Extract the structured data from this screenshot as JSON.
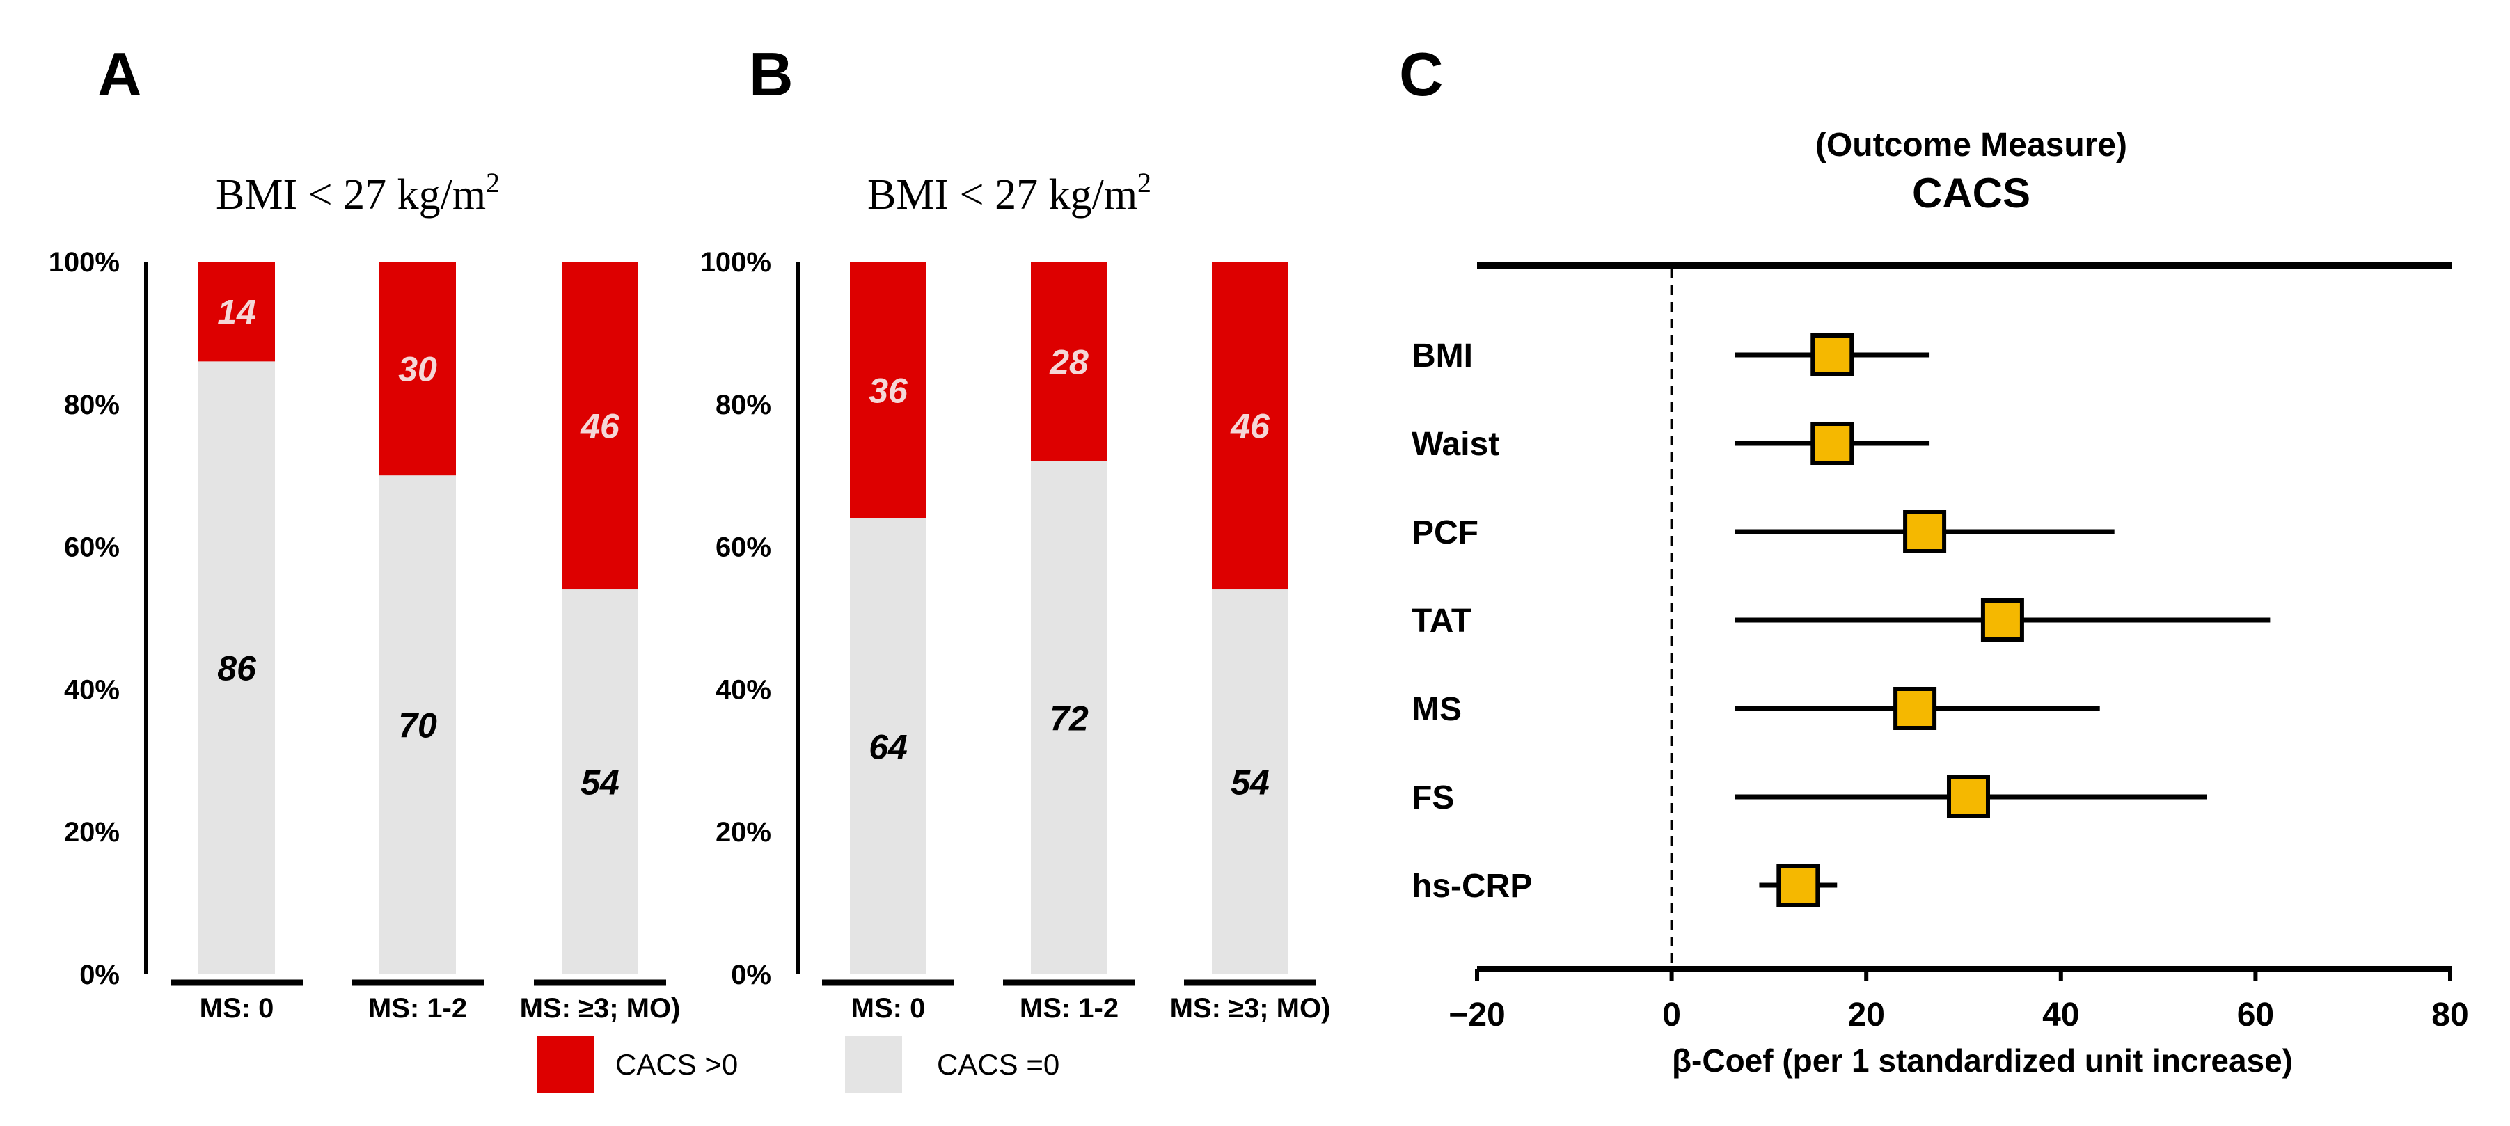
{
  "chart_data": [
    {
      "panel": "A",
      "type": "bar",
      "stacked": true,
      "percent": true,
      "title": "BMI < 27 kg/m",
      "title_superscript": "2",
      "categories": [
        "MS: 0",
        "MS: 1-2",
        "MS: ≥3; MO)"
      ],
      "series": [
        {
          "name": "CACS =0",
          "color": "#e4e4e4",
          "label_color": "#000000",
          "values": [
            86,
            70,
            54
          ]
        },
        {
          "name": "CACS >0",
          "color": "#dd0000",
          "label_color": "#f4d7d7",
          "values": [
            14,
            30,
            46
          ]
        }
      ],
      "ylim": [
        0,
        100
      ],
      "yticks": [
        "0%",
        "20%",
        "40%",
        "60%",
        "80%",
        "100%"
      ]
    },
    {
      "panel": "B",
      "type": "bar",
      "stacked": true,
      "percent": true,
      "title": "BMI < 27 kg/m",
      "title_superscript": "2",
      "categories": [
        "MS: 0",
        "MS: 1-2",
        "MS: ≥3; MO)"
      ],
      "series": [
        {
          "name": "CACS =0",
          "color": "#e4e4e4",
          "label_color": "#000000",
          "values": [
            64,
            72,
            54
          ]
        },
        {
          "name": "CACS >0",
          "color": "#dd0000",
          "label_color": "#f4d7d7",
          "values": [
            36,
            28,
            46
          ]
        }
      ],
      "ylim": [
        0,
        100
      ],
      "yticks": [
        "0%",
        "20%",
        "40%",
        "60%",
        "80%",
        "100%"
      ]
    },
    {
      "panel": "C",
      "type": "scatter",
      "subtype": "forest",
      "title_small": "(Outcome Measure)",
      "title": "CACS",
      "xlabel": "β-Coef (per 1 standardized unit increase)",
      "xlim": [
        -20,
        80
      ],
      "xticks": [
        -20,
        0,
        20,
        40,
        60,
        80
      ],
      "xtick_labels": [
        "−20",
        "0",
        "20",
        "40",
        "60",
        "80"
      ],
      "reference_line": 0,
      "marker_color": "#f5b800",
      "rows": [
        {
          "label": "BMI",
          "estimate": 16.5,
          "lower": 6.5,
          "upper": 26.5
        },
        {
          "label": "Waist",
          "estimate": 16.5,
          "lower": 6.5,
          "upper": 26.5
        },
        {
          "label": "PCF",
          "estimate": 26,
          "lower": 6.5,
          "upper": 45.5
        },
        {
          "label": "TAT",
          "estimate": 34,
          "lower": 6.5,
          "upper": 61.5
        },
        {
          "label": "MS",
          "estimate": 25,
          "lower": 6.5,
          "upper": 44
        },
        {
          "label": "FS",
          "estimate": 30.5,
          "lower": 6.5,
          "upper": 55
        },
        {
          "label": "hs-CRP",
          "estimate": 13,
          "lower": 9,
          "upper": 17
        }
      ]
    }
  ],
  "legend": {
    "items": [
      {
        "label": "CACS >0",
        "color": "#dd0000"
      },
      {
        "label": "CACS =0",
        "color": "#e4e4e4"
      }
    ]
  }
}
